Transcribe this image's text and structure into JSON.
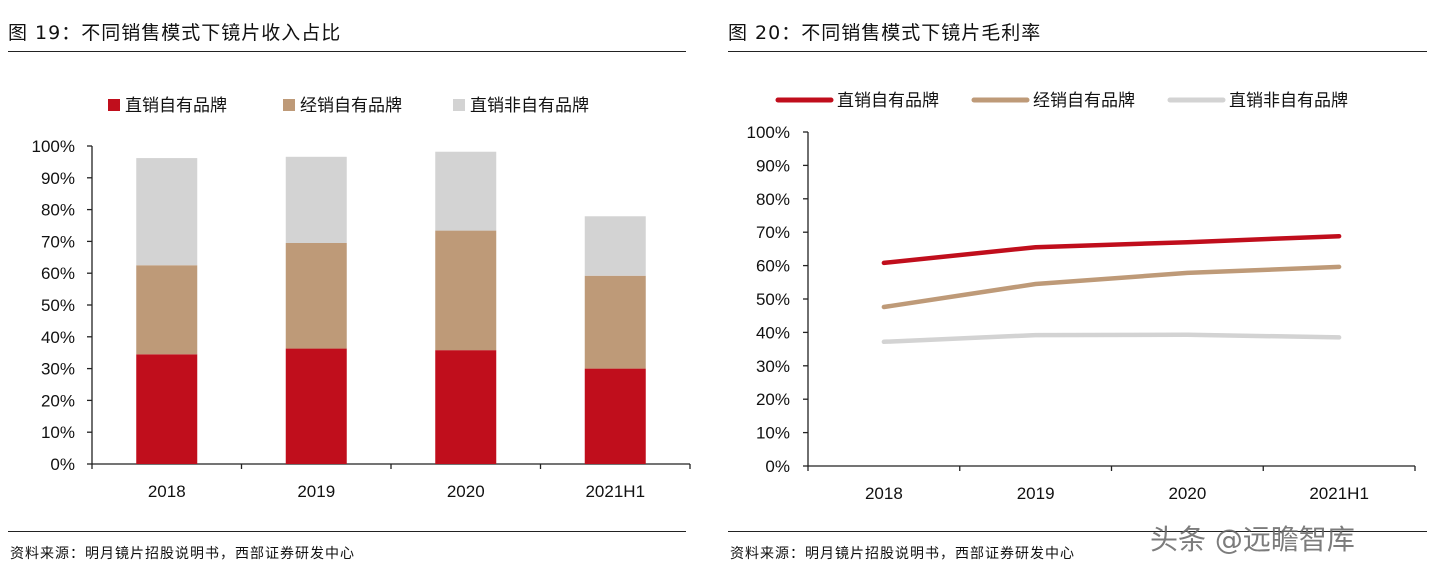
{
  "left_panel": {
    "title": "图 19：不同销售模式下镜片收入占比",
    "source": "资料来源：明月镜片招股说明书，西部证券研发中心"
  },
  "right_panel": {
    "title": "图 20：不同销售模式下镜片毛利率",
    "source": "资料来源：明月镜片招股说明书，西部证券研发中心"
  },
  "watermark": "头条 @远瞻智库",
  "colors": {
    "direct_own": "#C00E1C",
    "distribution_own": "#BE9A78",
    "direct_non_own": "#D3D3D3",
    "axis": "#222222"
  },
  "chart_data": [
    {
      "type": "bar",
      "stacked": true,
      "categories": [
        "2018",
        "2019",
        "2020",
        "2021H1"
      ],
      "series": [
        {
          "name": "直销自有品牌",
          "values": [
            34.5,
            36.3,
            35.8,
            30.0
          ],
          "color": "#C00E1C"
        },
        {
          "name": "经销自有品牌",
          "values": [
            28.0,
            33.2,
            37.6,
            29.2
          ],
          "color": "#BE9A78"
        },
        {
          "name": "直销非自有品牌",
          "values": [
            33.7,
            27.1,
            24.8,
            18.7
          ],
          "color": "#D3D3D3"
        }
      ],
      "yticks": [
        "0%",
        "10%",
        "20%",
        "30%",
        "40%",
        "50%",
        "60%",
        "70%",
        "80%",
        "90%",
        "100%"
      ],
      "ylim": [
        0,
        100
      ],
      "legend": "top"
    },
    {
      "type": "line",
      "categories": [
        "2018",
        "2019",
        "2020",
        "2021H1"
      ],
      "series": [
        {
          "name": "直销自有品牌",
          "values": [
            60.8,
            65.5,
            67.0,
            68.8
          ],
          "color": "#C00E1C"
        },
        {
          "name": "经销自有品牌",
          "values": [
            47.6,
            54.5,
            57.8,
            59.6
          ],
          "color": "#BE9A78"
        },
        {
          "name": "直销非自有品牌",
          "values": [
            37.2,
            39.2,
            39.3,
            38.5
          ],
          "color": "#D3D3D3"
        }
      ],
      "yticks": [
        "0%",
        "10%",
        "20%",
        "30%",
        "40%",
        "50%",
        "60%",
        "70%",
        "80%",
        "90%",
        "100%"
      ],
      "ylim": [
        0,
        100
      ],
      "legend": "top"
    }
  ]
}
